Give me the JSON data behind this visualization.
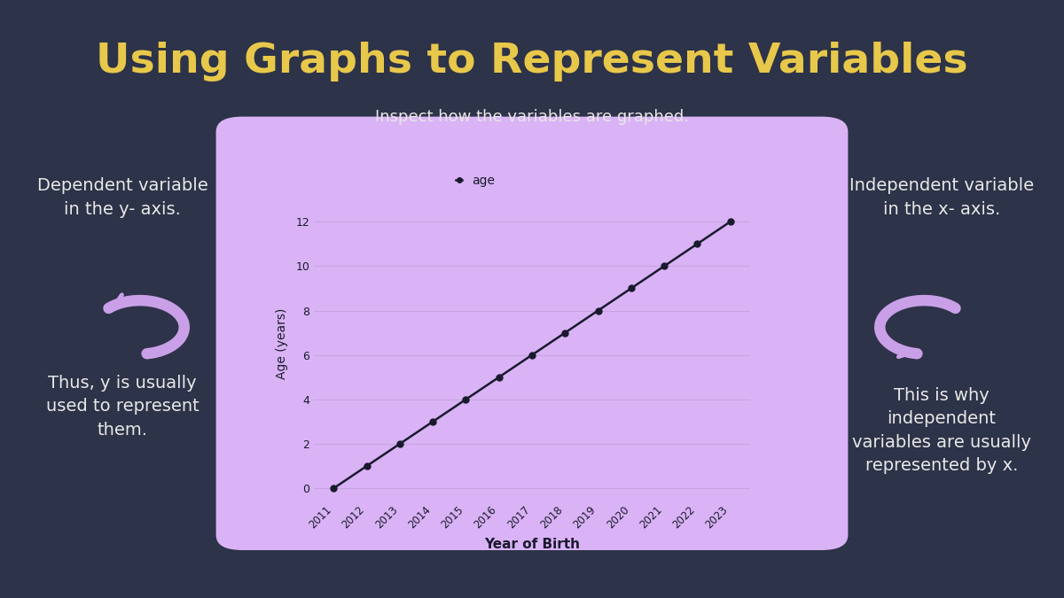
{
  "title": "Using Graphs to Represent Variables",
  "subtitle": "Inspect how the variables are graphed.",
  "bg_color": "#2d3348",
  "title_color": "#e8c84a",
  "subtitle_color": "#e8e8e8",
  "text_color": "#e8e8e8",
  "chart_bg_color": "#d9b3f5",
  "arrow_color": "#c9a0e8",
  "left_label_1": "Dependent variable\nin the y- axis.",
  "left_label_2": "Thus, y is usually\nused to represent\nthem.",
  "right_label_1": "Independent variable\nin the x- axis.",
  "right_label_2": "This is why\nindependent\nvariables are usually\nrepresented by x.",
  "x_data": [
    2011,
    2012,
    2013,
    2014,
    2015,
    2016,
    2017,
    2018,
    2019,
    2020,
    2021,
    2022,
    2023
  ],
  "y_data": [
    0,
    1,
    2,
    3,
    4,
    5,
    6,
    7,
    8,
    9,
    10,
    11,
    12
  ],
  "xlabel": "Year of Birth",
  "ylabel": "Age (years)",
  "legend_label": "age",
  "line_color": "#1a1a2e",
  "marker_color": "#1a1a2e",
  "grid_color": "#c0a0d8"
}
